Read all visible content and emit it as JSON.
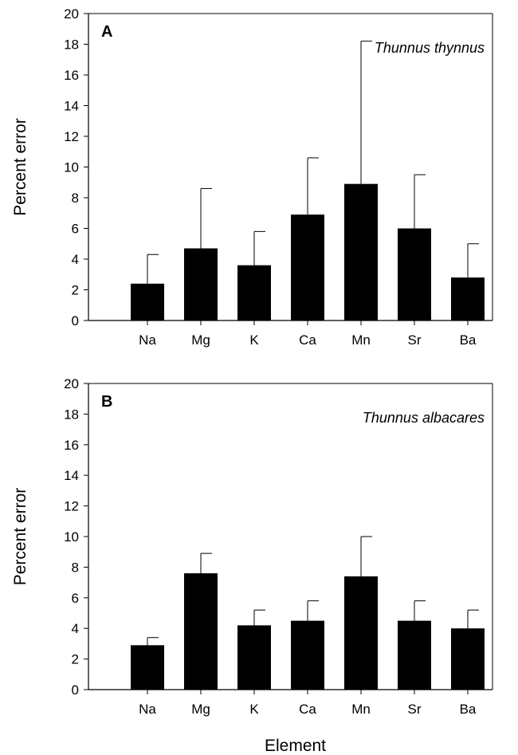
{
  "chart_data": [
    {
      "type": "bar",
      "panel_label": "A",
      "annotation": "Thunnus thynnus",
      "ylabel": "Percent error",
      "xlabel": "",
      "categories": [
        "Na",
        "Mg",
        "K",
        "Ca",
        "Mn",
        "Sr",
        "Ba"
      ],
      "values": [
        2.4,
        4.7,
        3.6,
        6.9,
        8.9,
        6.0,
        2.8
      ],
      "error_upper": [
        4.3,
        8.6,
        5.8,
        10.6,
        18.2,
        9.5,
        5.0
      ],
      "ylim": [
        0,
        20
      ],
      "yticks": [
        "0",
        "2",
        "4",
        "6",
        "8",
        "10",
        "12",
        "14",
        "16",
        "18",
        "20"
      ],
      "bar_color": "#000000",
      "grid": false
    },
    {
      "type": "bar",
      "panel_label": "B",
      "annotation": "Thunnus albacares",
      "ylabel": "Percent error",
      "xlabel": "Element",
      "categories": [
        "Na",
        "Mg",
        "K",
        "Ca",
        "Mn",
        "Sr",
        "Ba"
      ],
      "values": [
        2.9,
        7.6,
        4.2,
        4.5,
        7.4,
        4.5,
        4.0
      ],
      "error_upper": [
        3.4,
        8.9,
        5.2,
        5.8,
        10.0,
        5.8,
        5.2
      ],
      "ylim": [
        0,
        20
      ],
      "yticks": [
        "0",
        "2",
        "4",
        "6",
        "8",
        "10",
        "12",
        "14",
        "16",
        "18",
        "20"
      ],
      "bar_color": "#000000",
      "grid": false
    }
  ]
}
